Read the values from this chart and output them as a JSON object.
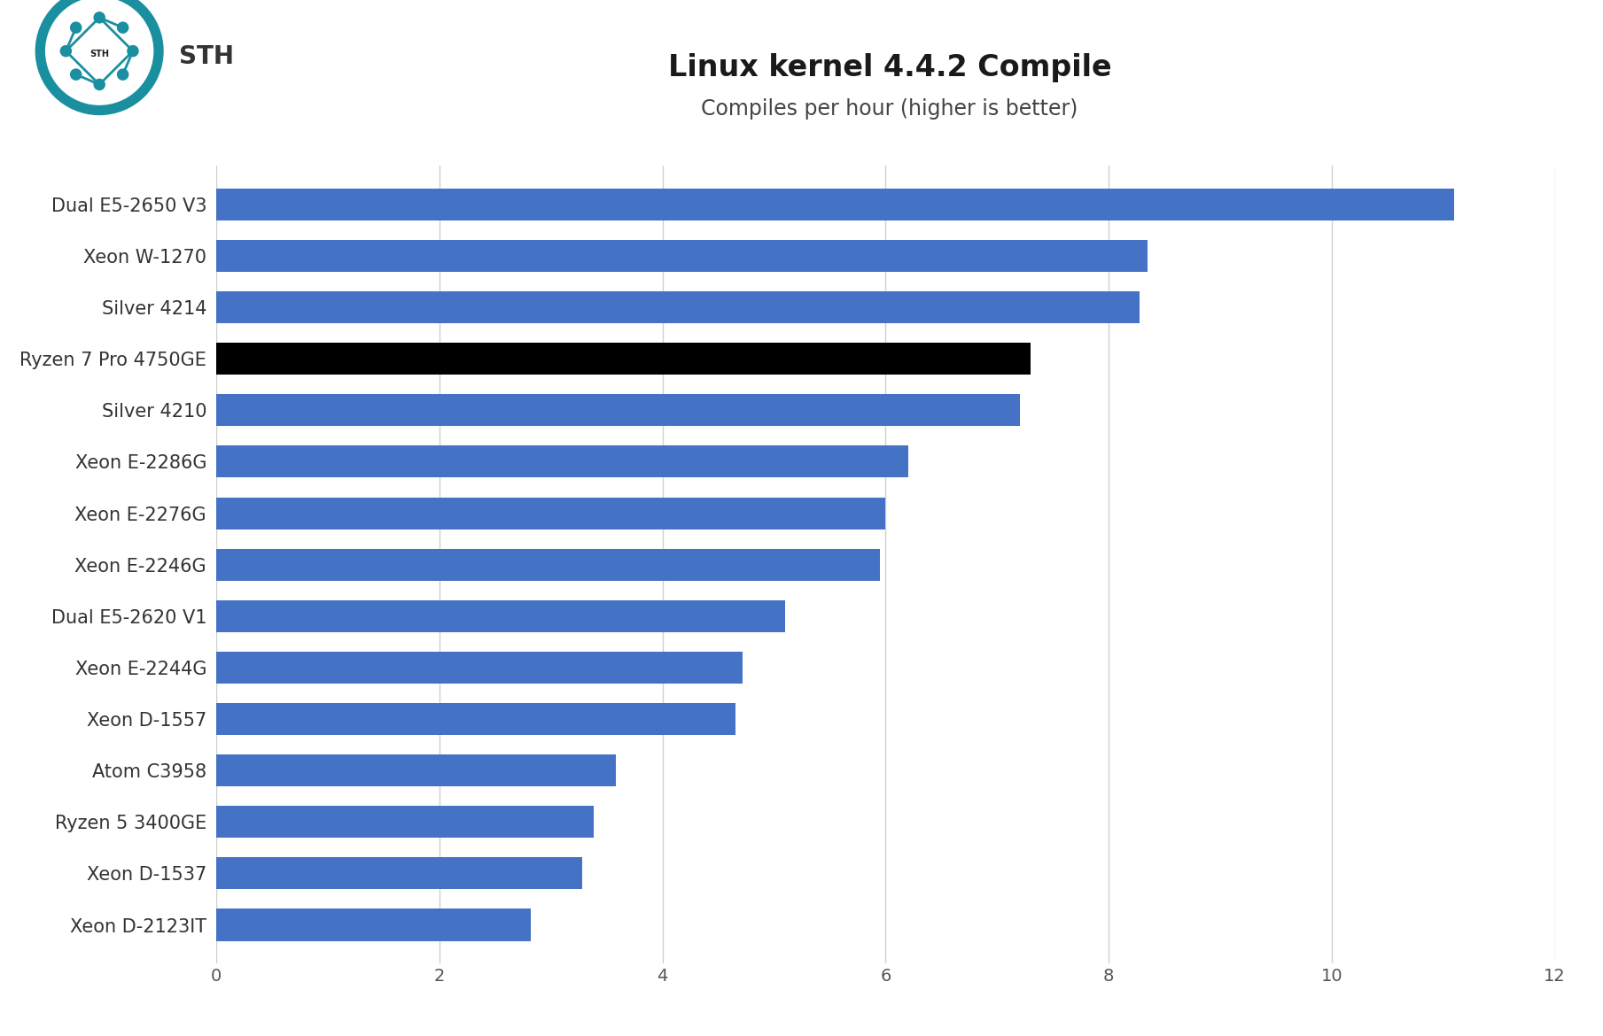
{
  "title": "Linux kernel 4.4.2 Compile",
  "subtitle": "Compiles per hour (higher is better)",
  "categories": [
    "Dual E5-2650 V3",
    "Xeon W-1270",
    "Silver 4214",
    "Ryzen 7 Pro 4750GE",
    "Silver 4210",
    "Xeon E-2286G",
    "Xeon E-2276G",
    "Xeon E-2246G",
    "Dual E5-2620 V1",
    "Xeon E-2244G",
    "Xeon D-1557",
    "Atom C3958",
    "Ryzen 5 3400GE",
    "Xeon D-1537",
    "Xeon D-2123IT"
  ],
  "values": [
    11.1,
    8.35,
    8.28,
    7.3,
    7.2,
    6.2,
    6.0,
    5.95,
    5.1,
    4.72,
    4.65,
    3.58,
    3.38,
    3.28,
    2.82
  ],
  "bar_colors": [
    "#4472c4",
    "#4472c4",
    "#4472c4",
    "#000000",
    "#4472c4",
    "#4472c4",
    "#4472c4",
    "#4472c4",
    "#4472c4",
    "#4472c4",
    "#4472c4",
    "#4472c4",
    "#4472c4",
    "#4472c4",
    "#4472c4"
  ],
  "xlim": [
    0,
    12
  ],
  "xticks": [
    0,
    2,
    4,
    6,
    8,
    10,
    12
  ],
  "background_color": "#ffffff",
  "grid_color": "#d0d0d0",
  "title_fontsize": 24,
  "subtitle_fontsize": 17,
  "label_fontsize": 15,
  "tick_fontsize": 14,
  "bar_height": 0.62
}
